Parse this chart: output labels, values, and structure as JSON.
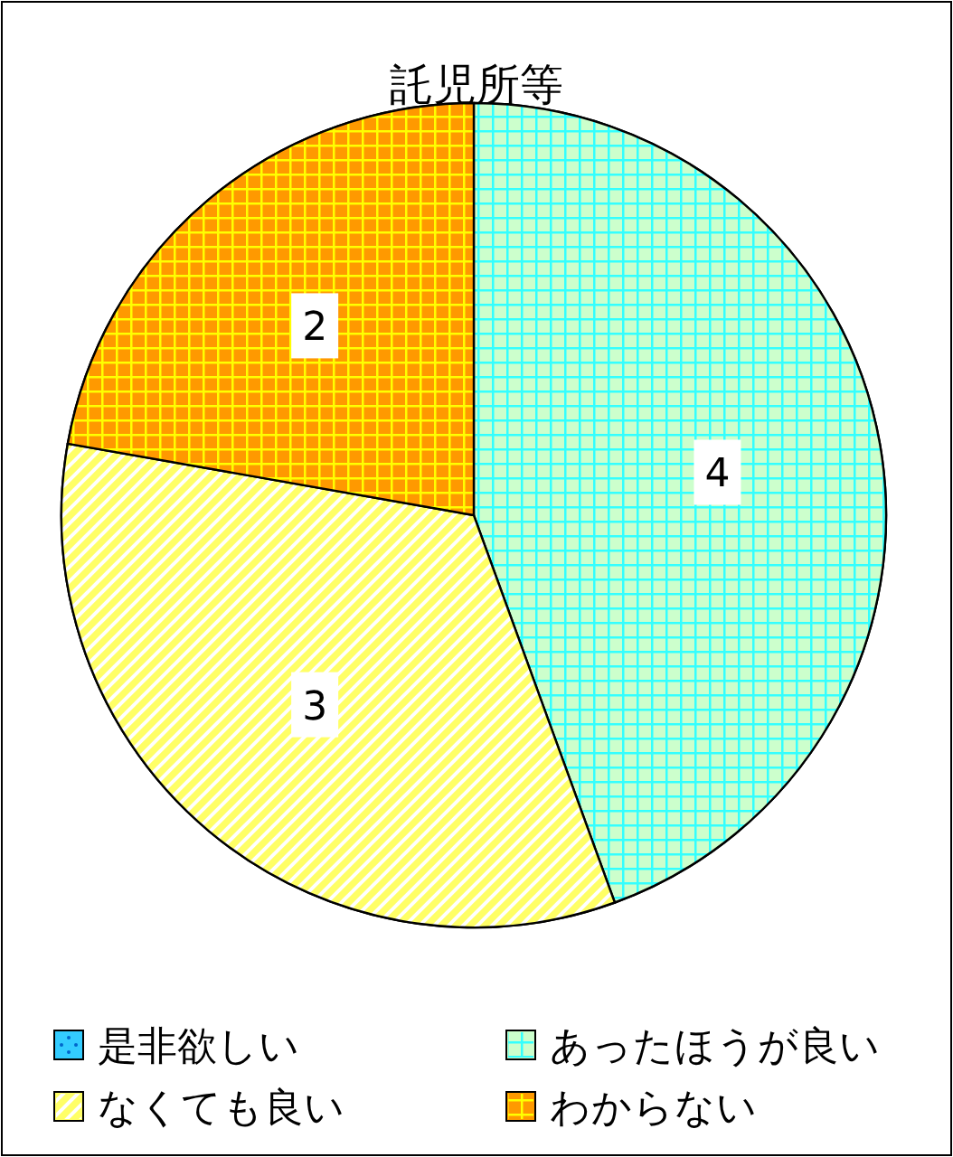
{
  "chart_data": {
    "type": "pie",
    "title": "託児所等",
    "categories": [
      "是非欲しい",
      "あったほうが良い",
      "なくても良い",
      "わからない"
    ],
    "values": [
      0,
      4,
      3,
      2
    ],
    "colors": [
      "#33ccff",
      "#ccffcc",
      "#ffff66",
      "#ff9900"
    ],
    "value_labels": [
      null,
      "4",
      "3",
      "2"
    ],
    "legend": "bottom"
  }
}
